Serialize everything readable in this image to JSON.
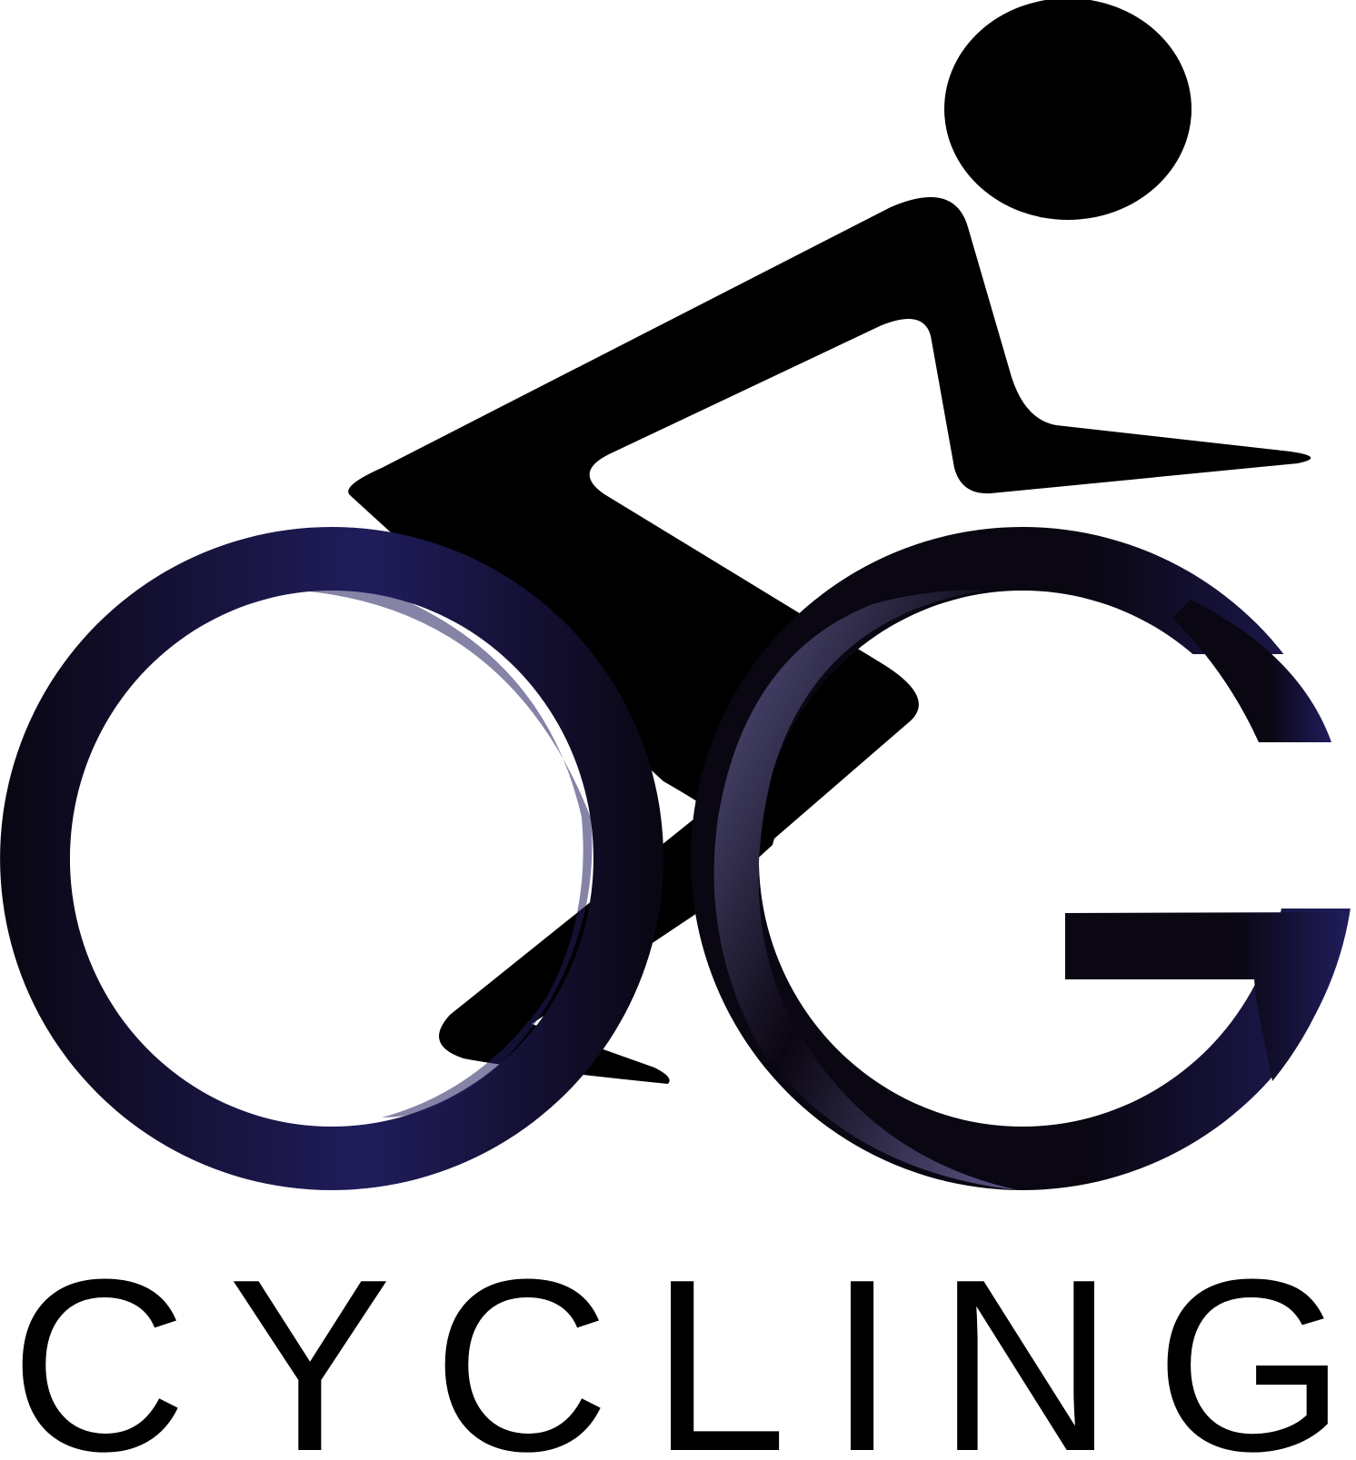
{
  "logo": {
    "monogram": "OG",
    "wordmark": "CYCLING",
    "figure": "cyclist-icon",
    "colors": {
      "figure": "#000000",
      "ring_dark": "#0a0612",
      "ring_navy": "#201d5c",
      "ring_light": "#6a669e",
      "wordmark": "#000000",
      "background": "#ffffff"
    }
  }
}
